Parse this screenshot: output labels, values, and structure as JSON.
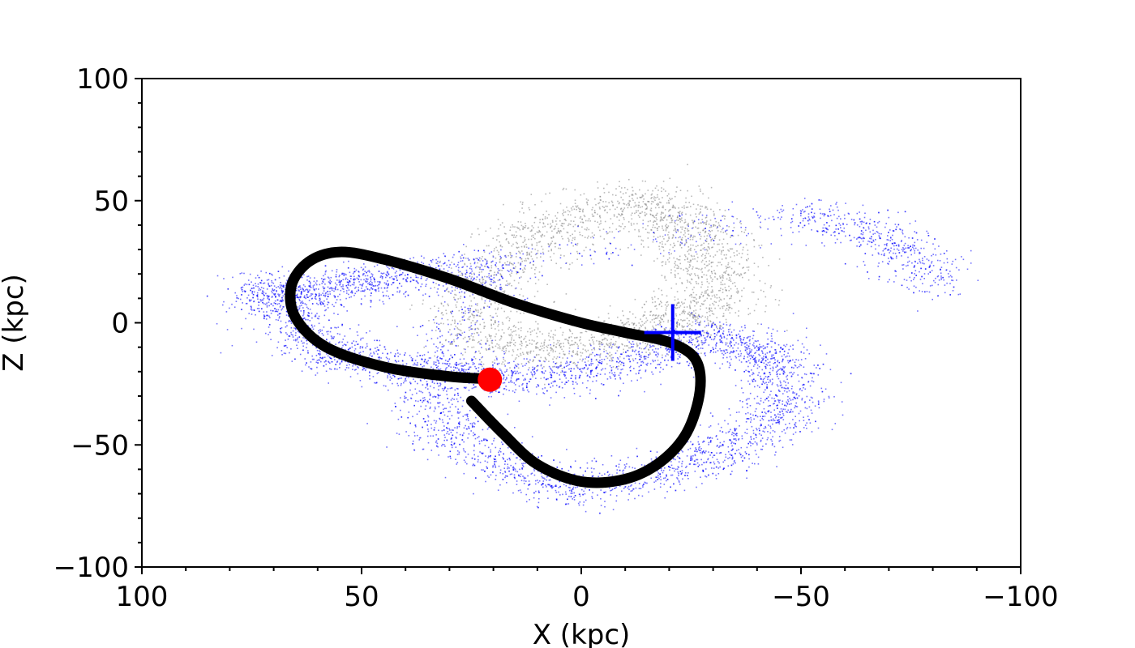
{
  "chart_data": {
    "type": "scatter",
    "title": "",
    "xlabel": "X (kpc)",
    "ylabel": "Z (kpc)",
    "xlim": [
      100,
      -100
    ],
    "ylim": [
      -100,
      100
    ],
    "x_inverted": true,
    "grid": false,
    "legend": "none",
    "x_ticks": [
      {
        "value": 100,
        "label": "100"
      },
      {
        "value": 50,
        "label": "50"
      },
      {
        "value": 0,
        "label": "0"
      },
      {
        "value": -50,
        "label": "−50"
      },
      {
        "value": -100,
        "label": "−100"
      }
    ],
    "y_ticks": [
      {
        "value": 100,
        "label": "100"
      },
      {
        "value": 50,
        "label": "50"
      },
      {
        "value": 0,
        "label": "0"
      },
      {
        "value": -50,
        "label": "−50"
      },
      {
        "value": -100,
        "label": "−100"
      }
    ],
    "series": [
      {
        "kind": "particles",
        "color": "#7f7f7f",
        "description_points": [
          [
            -8,
            50
          ],
          [
            -18,
            45
          ],
          [
            -26,
            35
          ],
          [
            -30,
            22
          ],
          [
            -28,
            8
          ],
          [
            -20,
            -2
          ],
          [
            -5,
            -8
          ],
          [
            12,
            -12
          ],
          [
            25,
            -2
          ],
          [
            22,
            18
          ],
          [
            10,
            35
          ],
          [
            0,
            45
          ]
        ],
        "spread_kpc": 6,
        "count": 2600
      },
      {
        "kind": "particles",
        "color": "#0000ff",
        "description_points": [
          [
            73,
            16
          ],
          [
            67,
            5
          ],
          [
            60,
            -10
          ],
          [
            45,
            -18
          ],
          [
            25,
            -22
          ],
          [
            5,
            -22
          ],
          [
            -15,
            -14
          ],
          [
            -30,
            -5
          ],
          [
            -42,
            -12
          ],
          [
            -48,
            -28
          ],
          [
            -40,
            -45
          ],
          [
            -25,
            -58
          ],
          [
            -5,
            -68
          ],
          [
            15,
            -62
          ],
          [
            30,
            -45
          ],
          [
            35,
            -25
          ],
          [
            20,
            22
          ],
          [
            40,
            20
          ],
          [
            55,
            15
          ],
          [
            68,
            10
          ],
          [
            -50,
            45
          ],
          [
            -70,
            35
          ],
          [
            -80,
            15
          ]
        ],
        "spread_kpc": 5,
        "count": 6000
      },
      {
        "kind": "orbit",
        "color": "#000000",
        "x": [
          25,
          18,
          10,
          0,
          -10,
          -18,
          -24,
          -27,
          -26,
          -20,
          -10,
          0,
          15,
          30,
          45,
          55,
          62,
          66,
          65,
          58,
          45,
          30,
          20
        ],
        "y": [
          -32,
          -45,
          -58,
          -65,
          -64,
          -57,
          -45,
          -28,
          -15,
          -8,
          -4,
          0,
          8,
          18,
          26,
          29,
          25,
          15,
          2,
          -10,
          -18,
          -22,
          -23
        ]
      },
      {
        "kind": "marker",
        "symbol": "circle",
        "color": "#ff0000",
        "x": [
          20.8
        ],
        "y": [
          -23.3
        ]
      },
      {
        "kind": "marker",
        "symbol": "plus",
        "color": "#0000ff",
        "x": [
          -20.8
        ],
        "y": [
          -4
        ]
      }
    ]
  }
}
